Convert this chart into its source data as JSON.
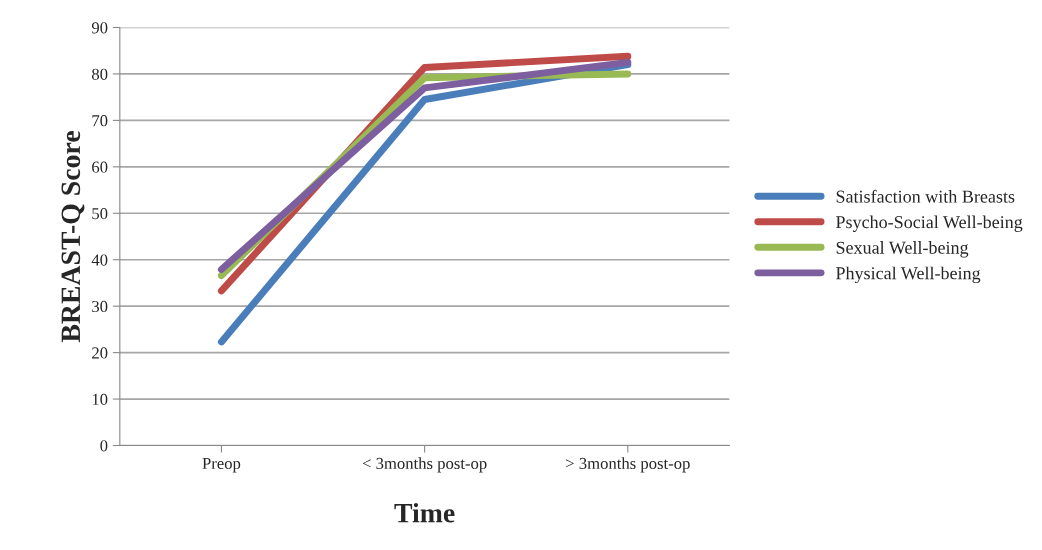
{
  "chart_data": {
    "type": "line",
    "xlabel": "Time",
    "ylabel": "BREAST-Q Score",
    "categories": [
      "Preop",
      "< 3months post-op",
      "> 3months post-op"
    ],
    "series": [
      {
        "name": "Satisfaction with Breasts",
        "color": "#4a7ebb",
        "values": [
          22.3,
          74.5,
          82
        ]
      },
      {
        "name": "Psycho-Social Well-being",
        "color": "#be4b48",
        "values": [
          33.3,
          81.4,
          83.8
        ]
      },
      {
        "name": "Sexual Well-being",
        "color": "#98b954",
        "values": [
          36.6,
          79.2,
          80
        ]
      },
      {
        "name": "Physical Well-being",
        "color": "#7d5fa0",
        "values": [
          37.9,
          77,
          82.5
        ]
      }
    ],
    "ylim": [
      0,
      90
    ],
    "yticks": [
      0,
      10,
      20,
      30,
      40,
      50,
      60,
      70,
      80,
      90
    ],
    "grid": "y",
    "legend": "right",
    "marker": "none",
    "line_style": "solid"
  }
}
